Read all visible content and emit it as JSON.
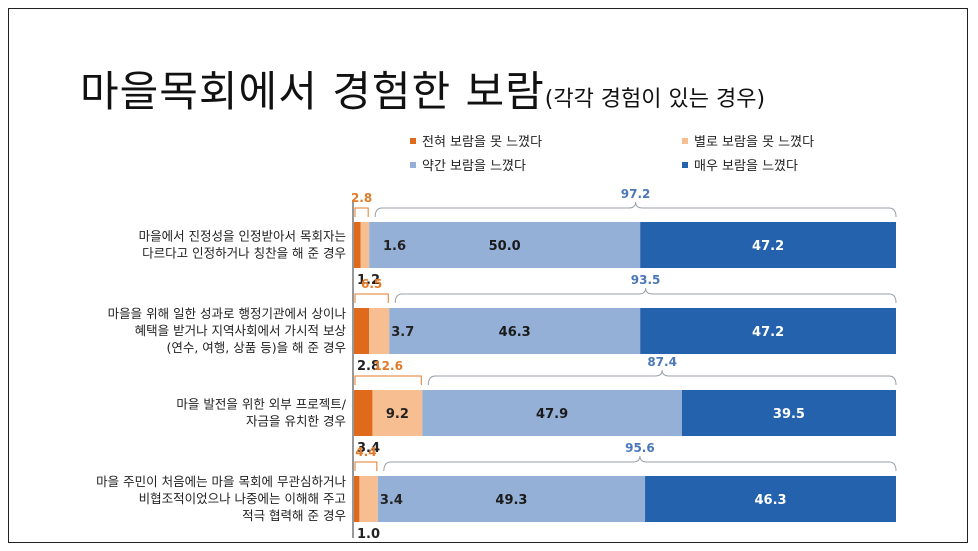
{
  "title": {
    "main": "마을목회에서 경험한 보람",
    "sub": "(각각 경험이 있는 경우)"
  },
  "colors": {
    "c1": "#e06a1b",
    "c2": "#f7bf91",
    "c3": "#95b0d6",
    "c4": "#2462ad",
    "neg_label": "#e07b2a",
    "pos_label": "#4a78b8",
    "bracket": "#9aa0a8"
  },
  "chart_data": {
    "type": "bar",
    "orientation": "horizontal",
    "stacked": true,
    "xlim": [
      0,
      100
    ],
    "legend_position": "top-right",
    "series": [
      {
        "name": "전혀 보람을 못 느꼈다",
        "color": "#e06a1b",
        "values": [
          1.2,
          2.8,
          3.4,
          1.0
        ]
      },
      {
        "name": "별로 보람을 못 느꼈다",
        "color": "#f7bf91",
        "values": [
          1.6,
          3.7,
          9.2,
          3.4
        ]
      },
      {
        "name": "약간 보람을 느꼈다",
        "color": "#95b0d6",
        "values": [
          50.0,
          46.3,
          47.9,
          49.3
        ]
      },
      {
        "name": "매우 보람을 느꼈다",
        "color": "#2462ad",
        "values": [
          47.2,
          47.2,
          39.5,
          46.3
        ]
      }
    ],
    "categories": [
      {
        "lines": [
          "마을에서 진정성을 인정받아서 목회자는",
          "다르다고 인정하거나 칭찬을 해 준 경우"
        ]
      },
      {
        "lines": [
          "마을을 위해 일한 성과로 행정기관에서 상이나",
          "혜택을 받거나 지역사회에서 가시적 보상",
          "(연수, 여행, 상품 등)을 해 준 경우"
        ]
      },
      {
        "lines": [
          "마을 발전을 위한 외부 프로젝트/",
          "자금을 유치한 경우"
        ]
      },
      {
        "lines": [
          "마을 주민이 처음에는 마을 목회에 무관심하거나",
          "비협조적이었으나 나중에는 이해해 주고",
          "적극 협력해 준 경우"
        ]
      }
    ],
    "negative_totals": [
      "2.8",
      "6.5",
      "12.6",
      "4.4"
    ],
    "positive_totals": [
      "97.2",
      "93.5",
      "87.4",
      "95.6"
    ],
    "segment_labels": [
      [
        "1.2",
        "1.6",
        "50.0",
        "47.2"
      ],
      [
        "2.8",
        "3.7",
        "46.3",
        "47.2"
      ],
      [
        "3.4",
        "9.2",
        "47.9",
        "39.5"
      ],
      [
        "1.0",
        "3.4",
        "49.3",
        "46.3"
      ]
    ]
  }
}
